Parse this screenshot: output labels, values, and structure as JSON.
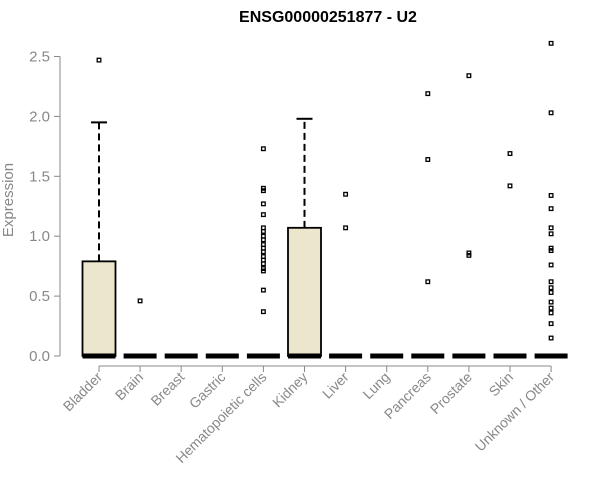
{
  "chart_data": {
    "type": "boxplot",
    "title": "ENSG00000251877 - U2",
    "xlabel": "",
    "ylabel": "Expression",
    "ylim": [
      0,
      2.6
    ],
    "yticks": [
      "0.0",
      "0.5",
      "1.0",
      "1.5",
      "2.0",
      "2.5"
    ],
    "grid": false,
    "box_fill": "#ece6cc",
    "categories": [
      "Bladder",
      "Brain",
      "Breast",
      "Gastric",
      "Hematopoietic cells",
      "Kidney",
      "Liver",
      "Lung",
      "Pancreas",
      "Prostate",
      "Skin",
      "Unknown / Other"
    ],
    "boxes": [
      {
        "q1": 0,
        "median": 0,
        "q3": 0.79,
        "whisker_low": 0,
        "whisker_high": 1.95,
        "outliers": [
          2.47
        ]
      },
      {
        "q1": 0,
        "median": 0,
        "q3": 0,
        "whisker_low": 0,
        "whisker_high": 0,
        "outliers": [
          0.46
        ]
      },
      {
        "q1": 0,
        "median": 0,
        "q3": 0,
        "whisker_low": 0,
        "whisker_high": 0,
        "outliers": []
      },
      {
        "q1": 0,
        "median": 0,
        "q3": 0,
        "whisker_low": 0,
        "whisker_high": 0,
        "outliers": []
      },
      {
        "q1": 0,
        "median": 0,
        "q3": 0,
        "whisker_low": 0,
        "whisker_high": 0,
        "outliers": [
          1.73,
          1.4,
          1.38,
          1.27,
          1.18,
          1.07,
          1.04,
          1.0,
          0.97,
          0.93,
          0.9,
          0.87,
          0.83,
          0.8,
          0.77,
          0.73,
          0.71,
          0.55,
          0.37
        ]
      },
      {
        "q1": 0,
        "median": 0,
        "q3": 1.07,
        "whisker_low": 0,
        "whisker_high": 1.98,
        "outliers": []
      },
      {
        "q1": 0,
        "median": 0,
        "q3": 0,
        "whisker_low": 0,
        "whisker_high": 0,
        "outliers": [
          1.35,
          1.07
        ]
      },
      {
        "q1": 0,
        "median": 0,
        "q3": 0,
        "whisker_low": 0,
        "whisker_high": 0,
        "outliers": []
      },
      {
        "q1": 0,
        "median": 0,
        "q3": 0,
        "whisker_low": 0,
        "whisker_high": 0,
        "outliers": [
          2.19,
          1.64,
          0.62
        ]
      },
      {
        "q1": 0,
        "median": 0,
        "q3": 0,
        "whisker_low": 0,
        "whisker_high": 0,
        "outliers": [
          2.34,
          0.86,
          0.84
        ]
      },
      {
        "q1": 0,
        "median": 0,
        "q3": 0,
        "whisker_low": 0,
        "whisker_high": 0,
        "outliers": [
          1.69,
          1.42
        ]
      },
      {
        "q1": 0,
        "median": 0,
        "q3": 0,
        "whisker_low": 0,
        "whisker_high": 0,
        "outliers": [
          2.61,
          2.03,
          1.34,
          1.23,
          1.07,
          1.02,
          0.9,
          0.88,
          0.76,
          0.62,
          0.57,
          0.53,
          0.45,
          0.4,
          0.36,
          0.27,
          0.15
        ]
      }
    ]
  }
}
